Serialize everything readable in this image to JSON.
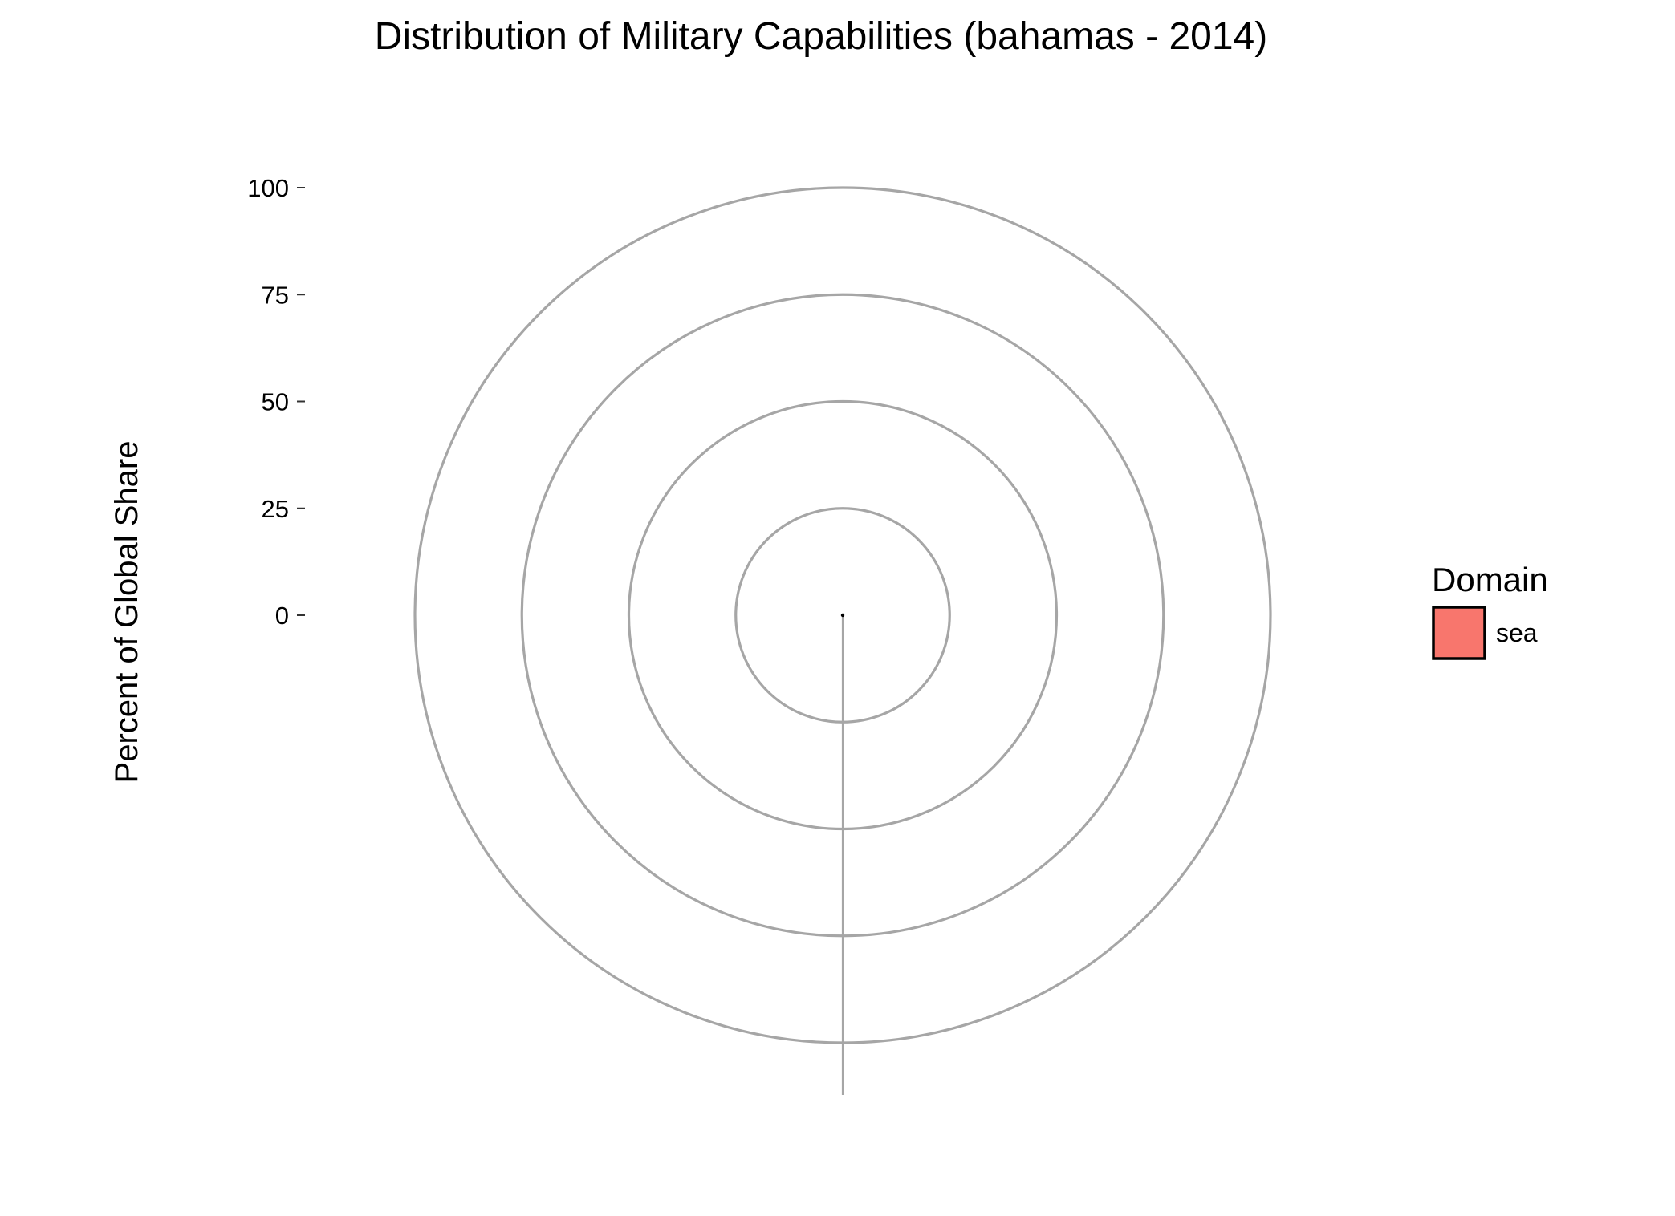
{
  "chart_data": {
    "type": "pie",
    "coord": "polar",
    "title": "Distribution of Military Capabilities (bahamas - 2014)",
    "xlabel": "",
    "ylabel": "Percent of Global Share",
    "ylim": [
      0,
      100
    ],
    "yticks": [
      0,
      25,
      50,
      75,
      100
    ],
    "ytick_labels": [
      "0",
      "25",
      "50",
      "75",
      "100"
    ],
    "grid": true,
    "categories": [
      "sea"
    ],
    "values": [
      0
    ],
    "legend": {
      "title": "Domain",
      "placement": "right",
      "entries": [
        {
          "label": "sea",
          "color": "#F8766D"
        }
      ]
    },
    "colors": {
      "grid": "#A6A6A6",
      "sea": "#F8766D"
    }
  }
}
